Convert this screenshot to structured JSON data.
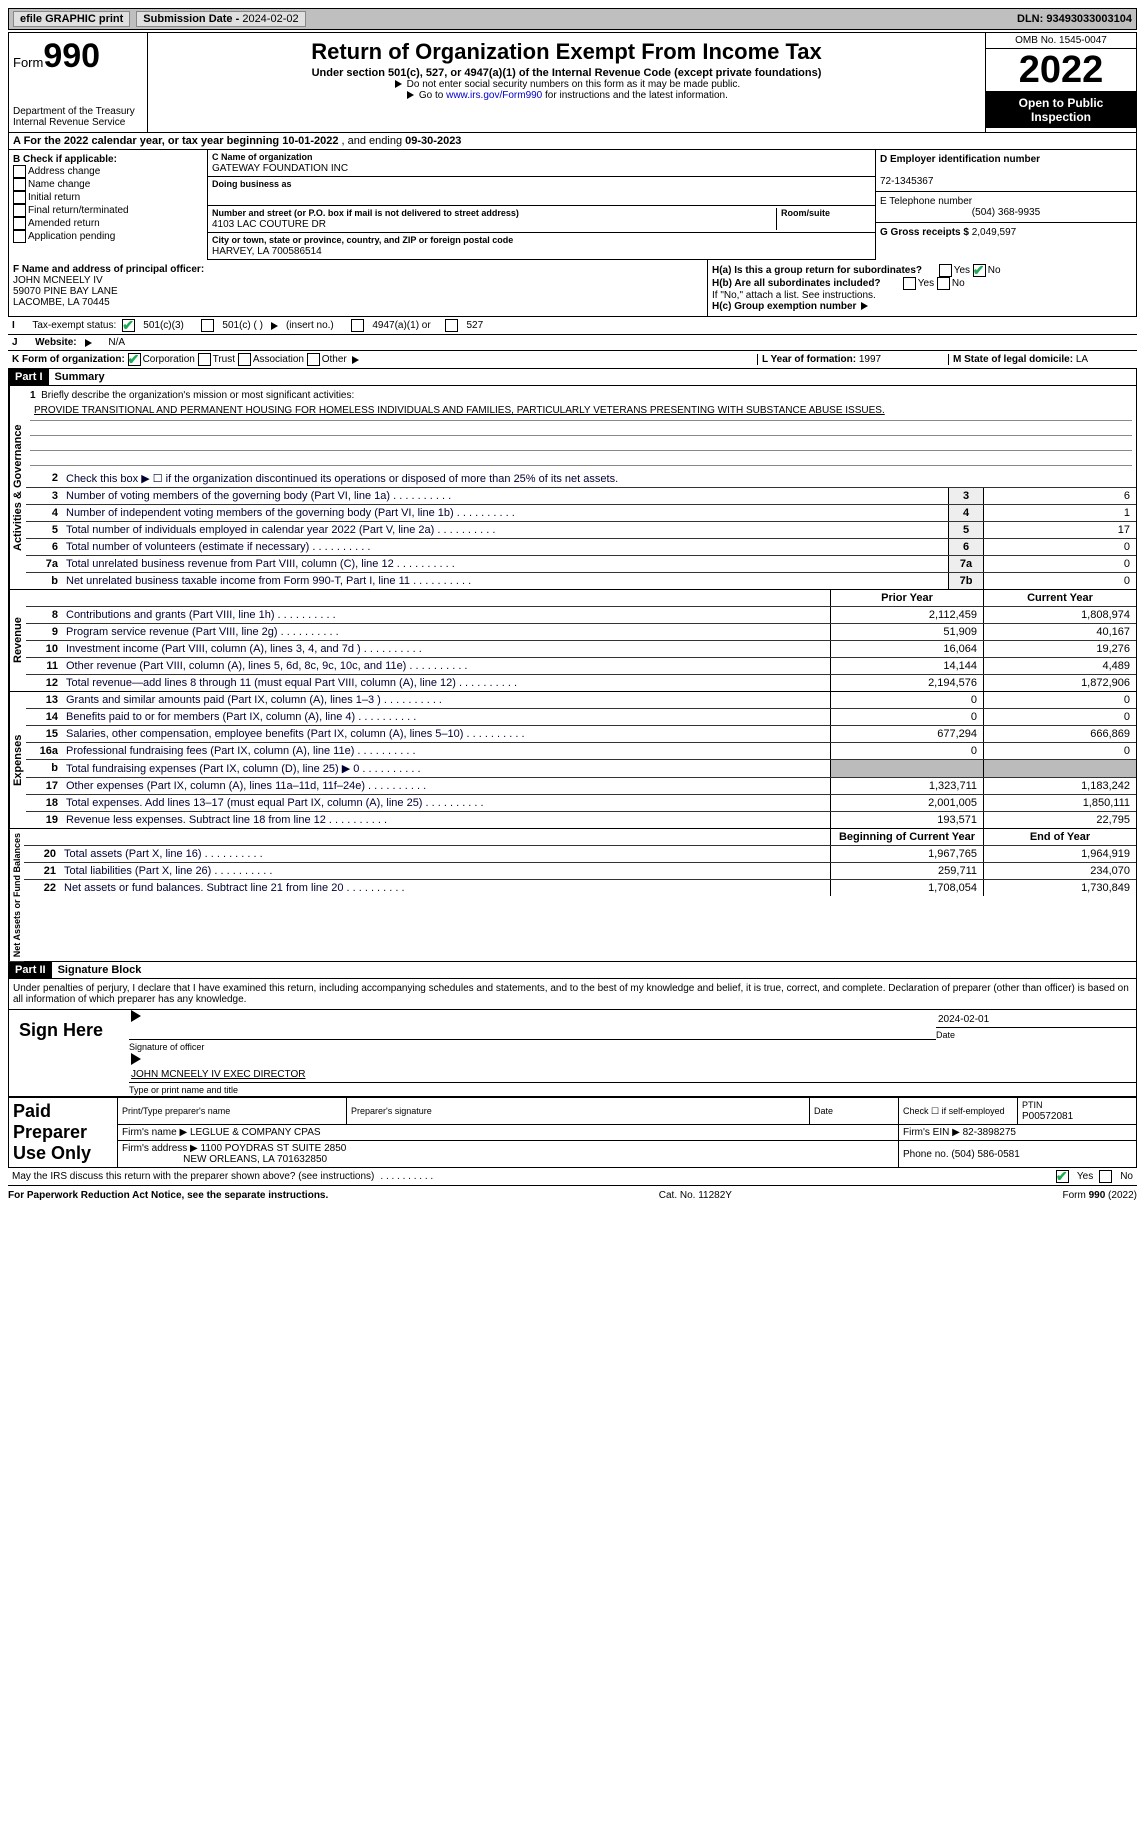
{
  "topbar": {
    "efile": "efile GRAPHIC print",
    "submission_label": "Submission Date - ",
    "submission_date": "2024-02-02",
    "dln_label": "DLN: ",
    "dln": "93493033003104"
  },
  "header": {
    "form_label": "Form",
    "form_no": "990",
    "dept": "Department of the Treasury\nInternal Revenue Service",
    "title": "Return of Organization Exempt From Income Tax",
    "sub": "Under section 501(c), 527, or 4947(a)(1) of the Internal Revenue Code (except private foundations)",
    "note1": "Do not enter social security numbers on this form as it may be made public.",
    "note2_pre": "Go to ",
    "note2_link": "www.irs.gov/Form990",
    "note2_post": " for instructions and the latest information.",
    "omb": "OMB No. 1545-0047",
    "year": "2022",
    "inspection": "Open to Public Inspection"
  },
  "sectionA": {
    "text_pre": "A For the 2022 calendar year, or tax year beginning ",
    "begin": "10-01-2022",
    "mid": "   , and ending ",
    "end": "09-30-2023"
  },
  "colB": {
    "header": "B Check if applicable:",
    "items": [
      "Address change",
      "Name change",
      "Initial return",
      "Final return/terminated",
      "Amended return",
      "Application pending"
    ]
  },
  "colC": {
    "name_label": "C Name of organization",
    "name": "GATEWAY FOUNDATION INC",
    "dba_label": "Doing business as",
    "dba": "",
    "addr_label": "Number and street (or P.O. box if mail is not delivered to street address)",
    "room_label": "Room/suite",
    "addr": "4103 LAC COUTURE DR",
    "city_label": "City or town, state or province, country, and ZIP or foreign postal code",
    "city": "HARVEY, LA  700586514"
  },
  "colD": {
    "ein_label": "D Employer identification number",
    "ein": "72-1345367",
    "phone_label": "E Telephone number",
    "phone": "(504) 368-9935",
    "gross_label": "G Gross receipts $ ",
    "gross": "2,049,597"
  },
  "lowF": {
    "label": "F Name and address of principal officer:",
    "name": "JOHN MCNEELY IV",
    "addr1": "59070 PINE BAY LANE",
    "addr2": "LACOMBE, LA  70445"
  },
  "lowH": {
    "a": "H(a)  Is this a group return for subordinates?",
    "b": "H(b)  Are all subordinates included?",
    "bnote": "If \"No,\" attach a list. See instructions.",
    "c": "H(c)  Group exemption number",
    "yes": "Yes",
    "no": "No"
  },
  "taxstatus": {
    "label": "Tax-exempt status:",
    "opt1": "501(c)(3)",
    "opt2": "501(c) (  )",
    "opt2note": "(insert no.)",
    "opt3": "4947(a)(1) or",
    "opt4": "527"
  },
  "website": {
    "label": "Website:",
    "val": "N/A"
  },
  "lineK": {
    "label": "K Form of organization:",
    "corp": "Corporation",
    "trust": "Trust",
    "assoc": "Association",
    "other": "Other"
  },
  "lineL": {
    "label": "L Year of formation: ",
    "val": "1997"
  },
  "lineM": {
    "label": "M State of legal domicile: ",
    "val": "LA"
  },
  "part1": {
    "tag": "Part I",
    "title": "Summary",
    "l1": "Briefly describe the organization's mission or most significant activities:",
    "mission": "PROVIDE TRANSITIONAL AND PERMANENT HOUSING FOR HOMELESS INDIVIDUALS AND FAMILIES, PARTICULARLY VETERANS PRESENTING WITH SUBSTANCE ABUSE ISSUES.",
    "l2": "Check this box ▶ ☐  if the organization discontinued its operations or disposed of more than 25% of its net assets.",
    "rows_gov": [
      {
        "n": "3",
        "d": "Number of voting members of the governing body (Part VI, line 1a)",
        "b": "3",
        "v": "6"
      },
      {
        "n": "4",
        "d": "Number of independent voting members of the governing body (Part VI, line 1b)",
        "b": "4",
        "v": "1"
      },
      {
        "n": "5",
        "d": "Total number of individuals employed in calendar year 2022 (Part V, line 2a)",
        "b": "5",
        "v": "17"
      },
      {
        "n": "6",
        "d": "Total number of volunteers (estimate if necessary)",
        "b": "6",
        "v": "0"
      },
      {
        "n": "7a",
        "d": "Total unrelated business revenue from Part VIII, column (C), line 12",
        "b": "7a",
        "v": "0"
      },
      {
        "n": "b",
        "d": "Net unrelated business taxable income from Form 990-T, Part I, line 11",
        "b": "7b",
        "v": "0"
      }
    ],
    "colhead_prior": "Prior Year",
    "colhead_curr": "Current Year",
    "rows_rev": [
      {
        "n": "8",
        "d": "Contributions and grants (Part VIII, line 1h)",
        "p": "2,112,459",
        "c": "1,808,974"
      },
      {
        "n": "9",
        "d": "Program service revenue (Part VIII, line 2g)",
        "p": "51,909",
        "c": "40,167"
      },
      {
        "n": "10",
        "d": "Investment income (Part VIII, column (A), lines 3, 4, and 7d )",
        "p": "16,064",
        "c": "19,276"
      },
      {
        "n": "11",
        "d": "Other revenue (Part VIII, column (A), lines 5, 6d, 8c, 9c, 10c, and 11e)",
        "p": "14,144",
        "c": "4,489"
      },
      {
        "n": "12",
        "d": "Total revenue—add lines 8 through 11 (must equal Part VIII, column (A), line 12)",
        "p": "2,194,576",
        "c": "1,872,906"
      }
    ],
    "rows_exp": [
      {
        "n": "13",
        "d": "Grants and similar amounts paid (Part IX, column (A), lines 1–3 )",
        "p": "0",
        "c": "0"
      },
      {
        "n": "14",
        "d": "Benefits paid to or for members (Part IX, column (A), line 4)",
        "p": "0",
        "c": "0"
      },
      {
        "n": "15",
        "d": "Salaries, other compensation, employee benefits (Part IX, column (A), lines 5–10)",
        "p": "677,294",
        "c": "666,869"
      },
      {
        "n": "16a",
        "d": "Professional fundraising fees (Part IX, column (A), line 11e)",
        "p": "0",
        "c": "0"
      },
      {
        "n": "b",
        "d": "Total fundraising expenses (Part IX, column (D), line 25) ▶ 0",
        "p": "",
        "c": "",
        "gray": true
      },
      {
        "n": "17",
        "d": "Other expenses (Part IX, column (A), lines 11a–11d, 11f–24e)",
        "p": "1,323,711",
        "c": "1,183,242"
      },
      {
        "n": "18",
        "d": "Total expenses. Add lines 13–17 (must equal Part IX, column (A), line 25)",
        "p": "2,001,005",
        "c": "1,850,111"
      },
      {
        "n": "19",
        "d": "Revenue less expenses. Subtract line 18 from line 12",
        "p": "193,571",
        "c": "22,795"
      }
    ],
    "colhead_beg": "Beginning of Current Year",
    "colhead_end": "End of Year",
    "rows_net": [
      {
        "n": "20",
        "d": "Total assets (Part X, line 16)",
        "p": "1,967,765",
        "c": "1,964,919"
      },
      {
        "n": "21",
        "d": "Total liabilities (Part X, line 26)",
        "p": "259,711",
        "c": "234,070"
      },
      {
        "n": "22",
        "d": "Net assets or fund balances. Subtract line 21 from line 20",
        "p": "1,708,054",
        "c": "1,730,849"
      }
    ],
    "vtab_gov": "Activities & Governance",
    "vtab_rev": "Revenue",
    "vtab_exp": "Expenses",
    "vtab_net": "Net Assets or Fund Balances"
  },
  "part2": {
    "tag": "Part II",
    "title": "Signature Block",
    "penalty": "Under penalties of perjury, I declare that I have examined this return, including accompanying schedules and statements, and to the best of my knowledge and belief, it is true, correct, and complete. Declaration of preparer (other than officer) is based on all information of which preparer has any knowledge.",
    "sign_here": "Sign Here",
    "sig_officer": "Signature of officer",
    "sig_date": "2024-02-01",
    "date_label": "Date",
    "typed_name": "JOHN MCNEELY IV  EXEC DIRECTOR",
    "typed_label": "Type or print name and title",
    "paid": "Paid Preparer Use Only",
    "prep_name_label": "Print/Type preparer's name",
    "prep_sig_label": "Preparer's signature",
    "check_self": "Check ☐ if self-employed",
    "ptin_label": "PTIN",
    "ptin": "P00572081",
    "firm_name_label": "Firm's name   ▶ ",
    "firm_name": "LEGLUE & COMPANY CPAS",
    "firm_ein_label": "Firm's EIN ▶ ",
    "firm_ein": "82-3898275",
    "firm_addr_label": "Firm's address ▶ ",
    "firm_addr": "1100 POYDRAS ST SUITE 2850",
    "firm_city": "NEW ORLEANS, LA  701632850",
    "firm_phone_label": "Phone no. ",
    "firm_phone": "(504) 586-0581",
    "discuss": "May the IRS discuss this return with the preparer shown above? (see instructions)"
  },
  "footer": {
    "left": "For Paperwork Reduction Act Notice, see the separate instructions.",
    "mid": "Cat. No. 11282Y",
    "right": "Form 990 (2022)"
  }
}
